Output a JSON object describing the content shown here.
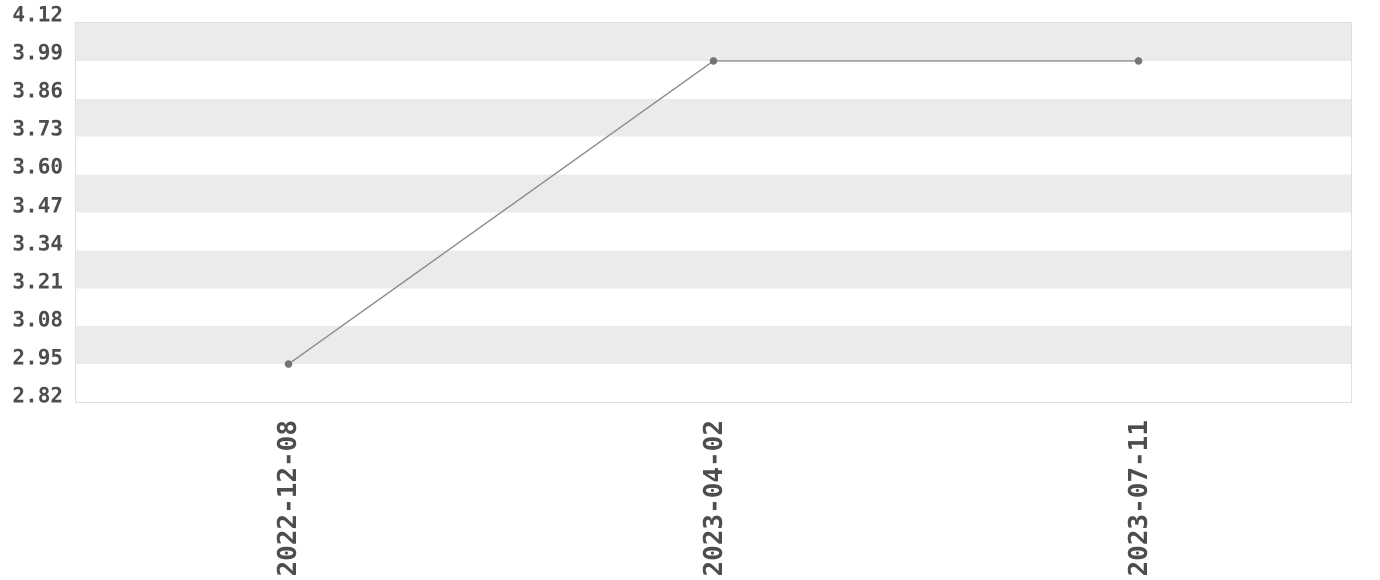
{
  "chart_data": {
    "type": "line",
    "title": "",
    "xlabel": "",
    "ylabel": "",
    "categories": [
      "2022-12-08",
      "2023-04-02",
      "2023-07-11"
    ],
    "series": [
      {
        "name": "value",
        "values": [
          2.95,
          3.99,
          3.99
        ]
      }
    ],
    "y_tick_labels": [
      "4.12",
      "3.99",
      "3.86",
      "3.73",
      "3.60",
      "3.47",
      "3.34",
      "3.21",
      "3.08",
      "2.95",
      "2.82"
    ],
    "ylim": [
      2.82,
      4.12
    ],
    "y_tick_step": 0.13,
    "grid": "horizontal-alternating-bands",
    "legend": "none",
    "marker": "circle",
    "x_label_rotation_deg": 90
  },
  "colors": {
    "background": "#ffffff",
    "band": "#ebebeb",
    "plot_border": "#dfdfdf",
    "tick_text": "#4d4d4d",
    "line": "#8c8c8c",
    "marker": "#757575"
  }
}
